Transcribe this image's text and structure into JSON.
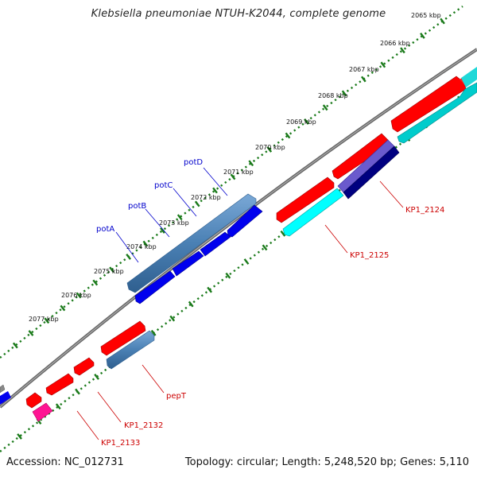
{
  "title": "Klebsiella pneumoniae NTUH-K2044, complete genome",
  "footer": {
    "accession": "Accession: NC_012731",
    "stats": "Topology: circular; Length: 5,248,520 bp; Genes: 5,110"
  },
  "ruler_ticks": [
    "2065 kbp",
    "2066 kbp",
    "2067 kbp",
    "2068 kbp",
    "2069 kbp",
    "2070 kbp",
    "2071 kbp",
    "2072 kbp",
    "2073 kbp",
    "2074 kbp",
    "2075 kbp",
    "2076 kbp",
    "2077 kbp"
  ],
  "gene_labels": {
    "potD": "potD",
    "potC": "potC",
    "potB": "potB",
    "potA": "potA",
    "KP1_2124": "KP1_2124",
    "KP1_2125": "KP1_2125",
    "pepT": "pepT",
    "KP1_2132": "KP1_2132",
    "KP1_2133": "KP1_2133"
  },
  "colors": {
    "backbone": "#808080",
    "ruler": "#1a7a1a",
    "red": "#ff0000",
    "cyan": "#00cccc",
    "blue": "#0000ee",
    "steel": "#4a80b4",
    "navy": "#000080",
    "purple": "#6a5acd",
    "pink": "#ff1493",
    "label_blue": "#0000cc",
    "label_red": "#cc0000"
  }
}
